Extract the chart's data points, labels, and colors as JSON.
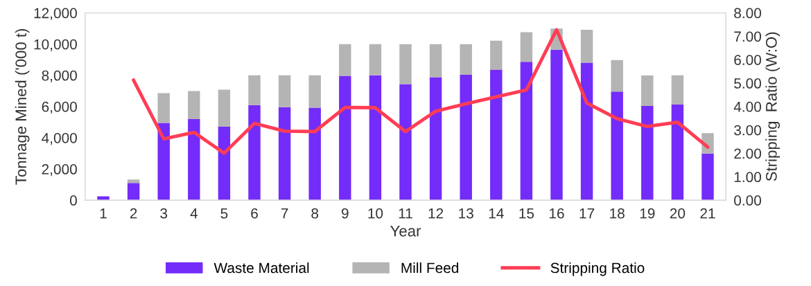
{
  "chart_data": {
    "type": "bar",
    "stacked": true,
    "xlabel": "Year",
    "ylabel": "Tonnage Mined ('000 t)",
    "y2label": "Stripping  Ratio (W:O)",
    "categories": [
      "1",
      "2",
      "3",
      "4",
      "5",
      "6",
      "7",
      "8",
      "9",
      "10",
      "11",
      "12",
      "13",
      "14",
      "15",
      "16",
      "17",
      "18",
      "19",
      "20",
      "21"
    ],
    "series": [
      {
        "name": "Waste Material",
        "color": "#732cf9",
        "values": [
          250,
          1100,
          4950,
          5200,
          4710,
          6090,
          5960,
          5930,
          7970,
          8000,
          7440,
          7880,
          8030,
          8370,
          8860,
          9640,
          8810,
          6960,
          6040,
          6130,
          2990
        ]
      },
      {
        "name": "Mill Feed",
        "color": "#b4b4b4",
        "values": [
          0,
          220,
          1910,
          1790,
          2370,
          1910,
          2040,
          2070,
          2030,
          2000,
          2560,
          2120,
          1970,
          1850,
          1900,
          1360,
          2110,
          2020,
          1950,
          1870,
          1310
        ]
      },
      {
        "name": "Stripping Ratio",
        "type": "line",
        "axis": "y2",
        "color": "#ff3d55",
        "values": [
          null,
          5.13,
          2.62,
          2.9,
          2.01,
          3.28,
          2.95,
          2.93,
          3.96,
          3.95,
          2.93,
          3.8,
          4.12,
          4.41,
          4.71,
          7.28,
          4.15,
          3.48,
          3.15,
          3.33,
          2.27
        ]
      }
    ],
    "ylim": [
      0,
      12000
    ],
    "yticks": [
      {
        "value": 0,
        "label": "0"
      },
      {
        "value": 2000,
        "label": "2,000"
      },
      {
        "value": 4000,
        "label": "4,000"
      },
      {
        "value": 6000,
        "label": "6,000"
      },
      {
        "value": 8000,
        "label": "8,000"
      },
      {
        "value": 10000,
        "label": "10,000"
      },
      {
        "value": 12000,
        "label": "12,000"
      }
    ],
    "y2lim": [
      0,
      8
    ],
    "y2ticks": [
      {
        "value": 0,
        "label": "0.00"
      },
      {
        "value": 1,
        "label": "1.00"
      },
      {
        "value": 2,
        "label": "2.00"
      },
      {
        "value": 3,
        "label": "3.00"
      },
      {
        "value": 4,
        "label": "4.00"
      },
      {
        "value": 5,
        "label": "5.00"
      },
      {
        "value": 6,
        "label": "6.00"
      },
      {
        "value": 7,
        "label": "7.00"
      },
      {
        "value": 8,
        "label": "8.00"
      }
    ],
    "grid": false,
    "legend": "bottom"
  }
}
